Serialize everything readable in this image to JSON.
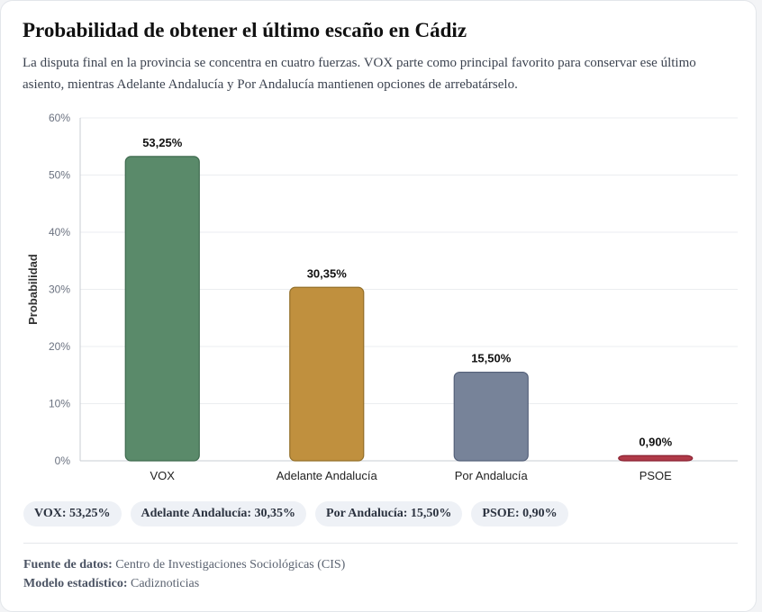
{
  "header": {
    "title": "Probabilidad de obtener el último escaño en Cádiz",
    "subtitle": "La disputa final en la provincia se concentra en cuatro fuerzas. VOX parte como principal favorito para conservar ese último asiento, mientras Adelante Andalucía y Por Andalucía mantienen opciones de arrebatárselo."
  },
  "chart_data": {
    "type": "bar",
    "title": "Probabilidad de obtener el último escaño en Cádiz",
    "xlabel": "",
    "ylabel": "Probabilidad",
    "ylim": [
      0,
      60
    ],
    "yticks": [
      0,
      10,
      20,
      30,
      40,
      50,
      60
    ],
    "ytick_labels": [
      "0%",
      "10%",
      "20%",
      "30%",
      "40%",
      "50%",
      "60%"
    ],
    "grid": true,
    "categories": [
      "VOX",
      "Adelante Andalucía",
      "Por Andalucía",
      "PSOE"
    ],
    "values": [
      53.25,
      30.35,
      15.5,
      0.9
    ],
    "value_labels": [
      "53,25%",
      "30,35%",
      "15,50%",
      "0,90%"
    ],
    "colors": [
      "#5a8a6a",
      "#c0903e",
      "#778399",
      "#b03a48"
    ],
    "border_colors": [
      "#3e6a4e",
      "#94702a",
      "#55617a",
      "#8a2232"
    ]
  },
  "pills": [
    "VOX: 53,25%",
    "Adelante Andalucía: 30,35%",
    "Por Andalucía: 15,50%",
    "PSOE: 0,90%"
  ],
  "footer": {
    "source_label": "Fuente de datos:",
    "source_value": " Centro de Investigaciones Sociológicas (CIS)",
    "model_label": "Modelo estadístico:",
    "model_value": " Cadiznoticias"
  }
}
